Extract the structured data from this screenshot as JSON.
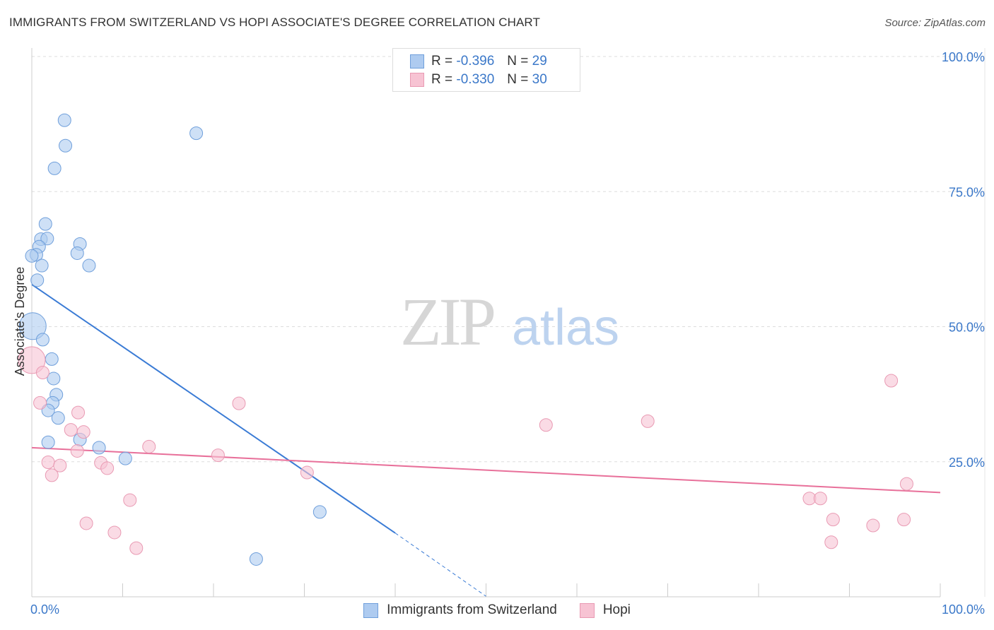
{
  "title": "IMMIGRANTS FROM SWITZERLAND VS HOPI ASSOCIATE'S DEGREE CORRELATION CHART",
  "source": "Source: ZipAtlas.com",
  "watermark": {
    "zip": "ZIP",
    "atlas": "atlas"
  },
  "colors": {
    "blue_fill": "#aecbf0",
    "blue_stroke": "#6f9fdb",
    "blue_line": "#3a7bd5",
    "pink_fill": "#f7c3d3",
    "pink_stroke": "#e99ab3",
    "pink_line": "#e8709a",
    "axis_text": "#3b78c9",
    "grid": "#dddddd"
  },
  "legend": {
    "r_label": "R =",
    "n_label": "N =",
    "rows": [
      {
        "series": "blue",
        "r": "-0.396",
        "n": "29"
      },
      {
        "series": "pink",
        "r": "-0.330",
        "n": "30"
      }
    ]
  },
  "bottom_legend": [
    {
      "series": "blue",
      "label": "Immigrants from Switzerland"
    },
    {
      "series": "pink",
      "label": "Hopi"
    }
  ],
  "chart_data": {
    "type": "scatter",
    "title": "IMMIGRANTS FROM SWITZERLAND VS HOPI ASSOCIATE'S DEGREE CORRELATION CHART",
    "xlabel": "",
    "ylabel": "Associate's Degree",
    "xlim": [
      0,
      100
    ],
    "ylim": [
      0,
      100
    ],
    "x_tick_labels": [
      "0.0%",
      "100.0%"
    ],
    "y_ticks": [
      25,
      50,
      75,
      100
    ],
    "y_tick_labels": [
      "25.0%",
      "50.0%",
      "75.0%",
      "100.0%"
    ],
    "grid": true,
    "legend_position": "top-center",
    "series": [
      {
        "name": "Immigrants from Switzerland",
        "color": "blue",
        "r": -0.396,
        "n": 29,
        "points": [
          {
            "x": 3.6,
            "y": 88.2
          },
          {
            "x": 3.7,
            "y": 83.5
          },
          {
            "x": 2.5,
            "y": 79.3
          },
          {
            "x": 18.1,
            "y": 85.8
          },
          {
            "x": 1.5,
            "y": 69.0
          },
          {
            "x": 1.0,
            "y": 66.2
          },
          {
            "x": 1.7,
            "y": 66.3
          },
          {
            "x": 0.8,
            "y": 64.8
          },
          {
            "x": 0.5,
            "y": 63.3
          },
          {
            "x": 5.3,
            "y": 65.3
          },
          {
            "x": 5.0,
            "y": 63.6
          },
          {
            "x": 6.3,
            "y": 61.3
          },
          {
            "x": 1.1,
            "y": 61.3
          },
          {
            "x": 0.6,
            "y": 58.6
          },
          {
            "x": 0.1,
            "y": 50.1
          },
          {
            "x": 1.2,
            "y": 47.6
          },
          {
            "x": 2.2,
            "y": 44.0
          },
          {
            "x": 2.4,
            "y": 40.4
          },
          {
            "x": 2.7,
            "y": 37.4
          },
          {
            "x": 2.3,
            "y": 35.9
          },
          {
            "x": 1.8,
            "y": 34.5
          },
          {
            "x": 2.9,
            "y": 33.1
          },
          {
            "x": 1.8,
            "y": 28.6
          },
          {
            "x": 5.3,
            "y": 29.1
          },
          {
            "x": 7.4,
            "y": 27.6
          },
          {
            "x": 10.3,
            "y": 25.6
          },
          {
            "x": 31.7,
            "y": 15.7
          },
          {
            "x": 24.7,
            "y": 7.0
          },
          {
            "x": 0.0,
            "y": 63.1
          }
        ],
        "trend": {
          "x0": 0,
          "y0": 57.8,
          "x1": 40,
          "y1": 11.8,
          "dash_to_x": 50,
          "dash_to_y": 0.1
        }
      },
      {
        "name": "Hopi",
        "color": "pink",
        "r": -0.33,
        "n": 30,
        "points": [
          {
            "x": 0.0,
            "y": 43.8
          },
          {
            "x": 1.2,
            "y": 41.5
          },
          {
            "x": 0.9,
            "y": 35.9
          },
          {
            "x": 5.1,
            "y": 34.1
          },
          {
            "x": 4.3,
            "y": 30.9
          },
          {
            "x": 5.7,
            "y": 30.5
          },
          {
            "x": 5.0,
            "y": 27.0
          },
          {
            "x": 12.9,
            "y": 27.8
          },
          {
            "x": 20.5,
            "y": 26.2
          },
          {
            "x": 1.8,
            "y": 24.9
          },
          {
            "x": 3.1,
            "y": 24.3
          },
          {
            "x": 7.6,
            "y": 24.8
          },
          {
            "x": 8.3,
            "y": 23.8
          },
          {
            "x": 2.2,
            "y": 22.5
          },
          {
            "x": 10.8,
            "y": 17.9
          },
          {
            "x": 6.0,
            "y": 13.6
          },
          {
            "x": 9.1,
            "y": 11.9
          },
          {
            "x": 11.5,
            "y": 9.0
          },
          {
            "x": 22.8,
            "y": 35.8
          },
          {
            "x": 30.3,
            "y": 23.0
          },
          {
            "x": 56.6,
            "y": 31.8
          },
          {
            "x": 67.8,
            "y": 32.5
          },
          {
            "x": 94.6,
            "y": 40.0
          },
          {
            "x": 85.6,
            "y": 18.2
          },
          {
            "x": 86.8,
            "y": 18.2
          },
          {
            "x": 96.3,
            "y": 20.9
          },
          {
            "x": 88.2,
            "y": 14.3
          },
          {
            "x": 92.6,
            "y": 13.2
          },
          {
            "x": 88.0,
            "y": 10.1
          },
          {
            "x": 96.0,
            "y": 14.3
          }
        ],
        "trend": {
          "x0": 0,
          "y0": 27.6,
          "x1": 100,
          "y1": 19.3
        }
      }
    ]
  }
}
